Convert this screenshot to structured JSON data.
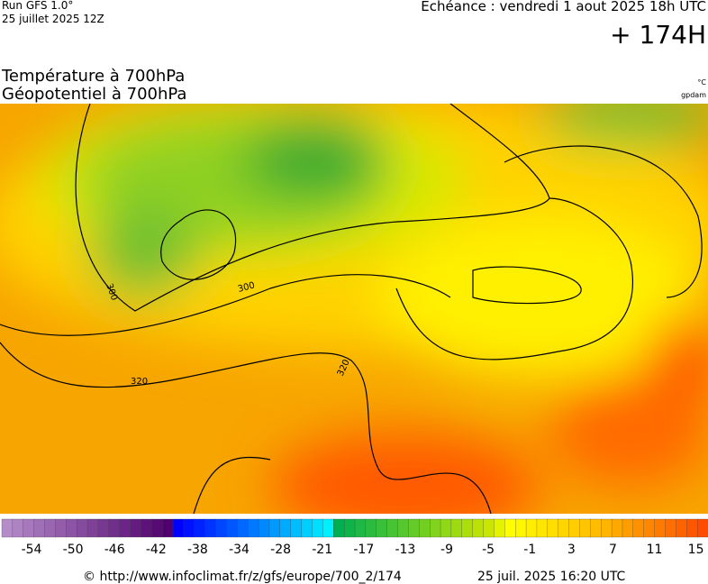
{
  "header": {
    "run": "Run GFS 1.0°",
    "run_date": "25 juillet 2025 12Z",
    "valid": "Echéance : vendredi 1 aout 2025 18h UTC",
    "lead": "+ 174H",
    "title_1": "Température à 700hPa",
    "title_2": "Géopotentiel à 700hPa",
    "unit_1": "°C",
    "unit_2": "gpdam"
  },
  "map": {
    "contour_labels": [
      "300",
      "300",
      "320",
      "320"
    ]
  },
  "colorbar": {
    "labels": [
      -54,
      -50,
      -46,
      -42,
      -38,
      -34,
      -28,
      -21,
      -17,
      -13,
      -9,
      -5,
      -1,
      3,
      7,
      11,
      15
    ]
  },
  "footer": {
    "url": "© http://www.infoclimat.fr/z/gfs/europe/700_2/174",
    "timestamp": "25 juil. 2025 16:20 UTC"
  }
}
